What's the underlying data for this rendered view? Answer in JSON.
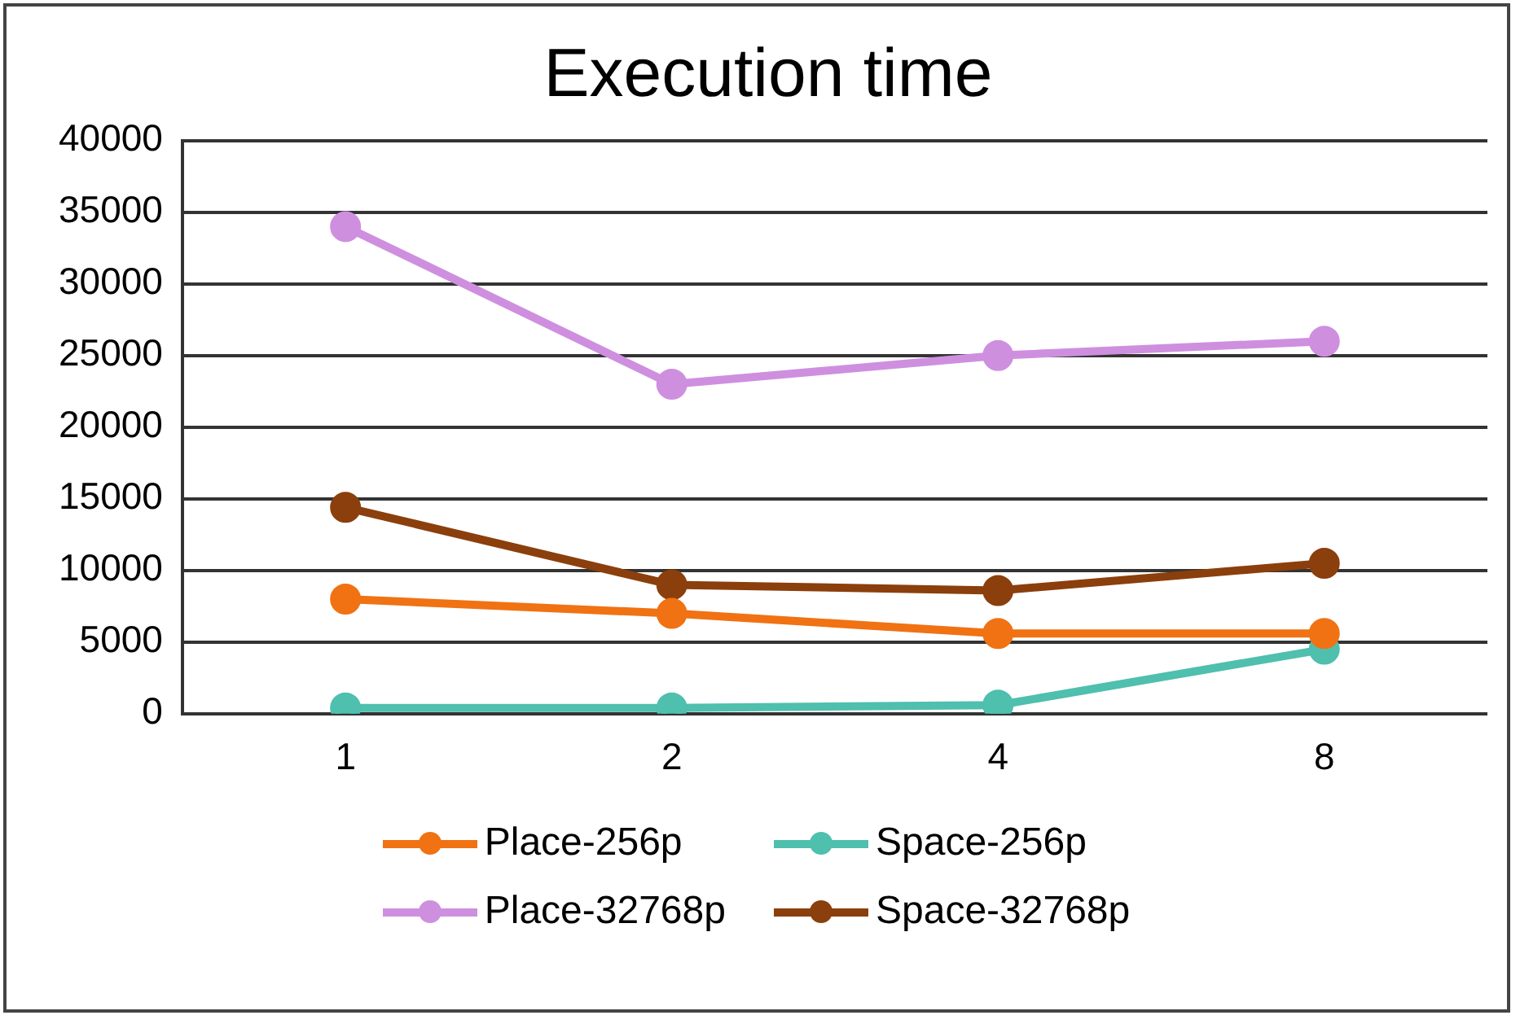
{
  "chart_data": {
    "type": "line",
    "title": "Execution time",
    "categories": [
      "1",
      "2",
      "4",
      "8"
    ],
    "series": [
      {
        "name": "Place-256p",
        "color": "#f07213",
        "values": [
          8000,
          7000,
          5600,
          5600
        ]
      },
      {
        "name": "Space-256p",
        "color": "#4fbfae",
        "values": [
          400,
          400,
          600,
          4500
        ]
      },
      {
        "name": "Place-32768p",
        "color": "#cf8fdf",
        "values": [
          34000,
          23000,
          25000,
          26000
        ]
      },
      {
        "name": "Space-32768p",
        "color": "#8b3f0c",
        "values": [
          14400,
          9000,
          8600,
          10500
        ]
      }
    ],
    "ylim": [
      0,
      40000
    ],
    "yticks": [
      0,
      5000,
      10000,
      15000,
      20000,
      25000,
      30000,
      35000,
      40000
    ],
    "grid": "y",
    "legend": "bottom",
    "marker": "circle",
    "line_style": "solid"
  }
}
